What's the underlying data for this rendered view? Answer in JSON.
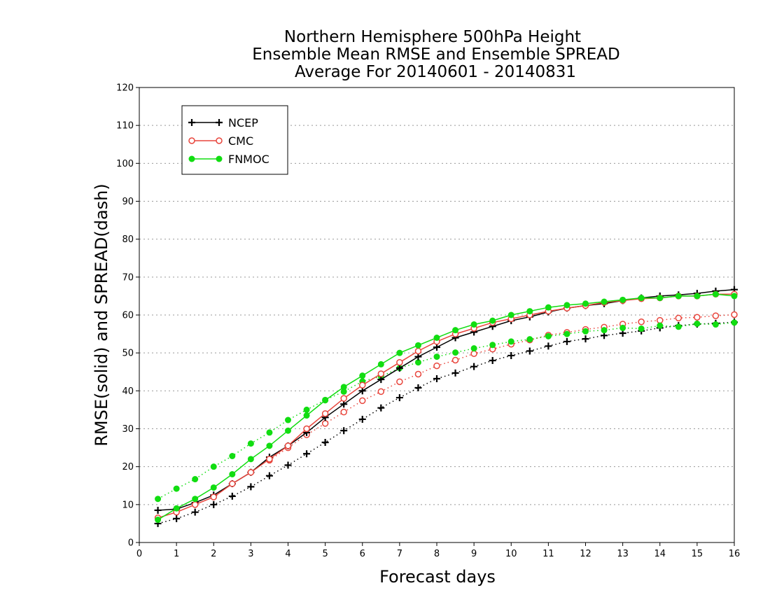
{
  "chart_data": {
    "type": "line",
    "title": [
      "Northern Hemisphere 500hPa Height",
      "Ensemble Mean RMSE and Ensemble SPREAD",
      "Average For 20140601 - 20140831"
    ],
    "xlabel": "Forecast days",
    "ylabel": "RMSE(solid) and SPREAD(dash)",
    "xlim": [
      0,
      16
    ],
    "ylim": [
      0,
      120
    ],
    "xticks": [
      "0",
      "1",
      "2",
      "3",
      "4",
      "5",
      "6",
      "7",
      "8",
      "9",
      "10",
      "11",
      "12",
      "13",
      "14",
      "15",
      "16"
    ],
    "yticks": [
      "0",
      "10",
      "20",
      "30",
      "40",
      "50",
      "60",
      "70",
      "80",
      "90",
      "100",
      "110",
      "120"
    ],
    "grid": "horizontal dotted",
    "legend_position": "top-left",
    "x": [
      0.5,
      1,
      1.5,
      2,
      2.5,
      3,
      3.5,
      4,
      4.5,
      5,
      5.5,
      6,
      6.5,
      7,
      7.5,
      8,
      8.5,
      9,
      9.5,
      10,
      10.5,
      11,
      11.5,
      12,
      12.5,
      13,
      13.5,
      14,
      14.5,
      15,
      15.5,
      16
    ],
    "series": [
      {
        "name": "NCEP",
        "color": "#000000",
        "marker": "plus",
        "rmse": [
          8.5,
          8.8,
          10.5,
          12.5,
          15.5,
          18.5,
          22.5,
          25.5,
          29,
          33,
          36.5,
          40,
          43,
          46,
          49,
          51.5,
          54,
          55.5,
          57,
          58.5,
          59.5,
          60.8,
          61.8,
          62.5,
          63,
          63.8,
          64.5,
          65,
          65.3,
          65.7,
          66.3,
          66.7
        ],
        "spread": [
          5,
          6.3,
          8,
          10,
          12.2,
          14.7,
          17.6,
          20.4,
          23.4,
          26.4,
          29.5,
          32.5,
          35.5,
          38.2,
          40.8,
          43.2,
          44.7,
          46.4,
          48,
          49.3,
          50.5,
          51.8,
          53,
          53.7,
          54.6,
          55.2,
          55.8,
          56.6,
          57.2,
          57.6,
          57.8,
          58.1
        ]
      },
      {
        "name": "CMC",
        "color": "#e8453c",
        "marker": "open-circle",
        "rmse": [
          6.5,
          8,
          10,
          12,
          15.5,
          18.5,
          22,
          25.5,
          30,
          34,
          38,
          41.5,
          44.5,
          47.5,
          50.5,
          53,
          55,
          56.5,
          58,
          59,
          60,
          61,
          61.8,
          62.5,
          63.3,
          63.8,
          64.3,
          64.5,
          65,
          65,
          65.5,
          65.5
        ],
        "spread": [
          null,
          null,
          null,
          null,
          null,
          null,
          21.7,
          25,
          28.4,
          31.4,
          34.4,
          37.4,
          39.8,
          42.4,
          44.4,
          46.6,
          48.1,
          49.8,
          51,
          52.3,
          53.4,
          54.7,
          55.4,
          56.2,
          56.8,
          57.6,
          58.2,
          58.6,
          59.2,
          59.4,
          59.8,
          60.1
        ]
      },
      {
        "name": "FNMOC",
        "color": "#11dd11",
        "marker": "filled-circle",
        "rmse": [
          6,
          9,
          11.5,
          14.5,
          18,
          22,
          25.5,
          29.5,
          33.5,
          37.5,
          41,
          44,
          47,
          50,
          52,
          54,
          56,
          57.5,
          58.5,
          60,
          61,
          62,
          62.6,
          63,
          63.5,
          64,
          64.5,
          64.5,
          65,
          65,
          65.5,
          65
        ],
        "spread": [
          11.5,
          14.2,
          16.7,
          20,
          22.8,
          26.1,
          29,
          32.3,
          35,
          37.6,
          39.8,
          42.5,
          43.8,
          46,
          47.5,
          49,
          50.1,
          51.2,
          52.1,
          53,
          53.6,
          54.4,
          55,
          55.7,
          56,
          56.6,
          56.4,
          57.2,
          56.9,
          57.7,
          57.5,
          58
        ]
      }
    ]
  }
}
